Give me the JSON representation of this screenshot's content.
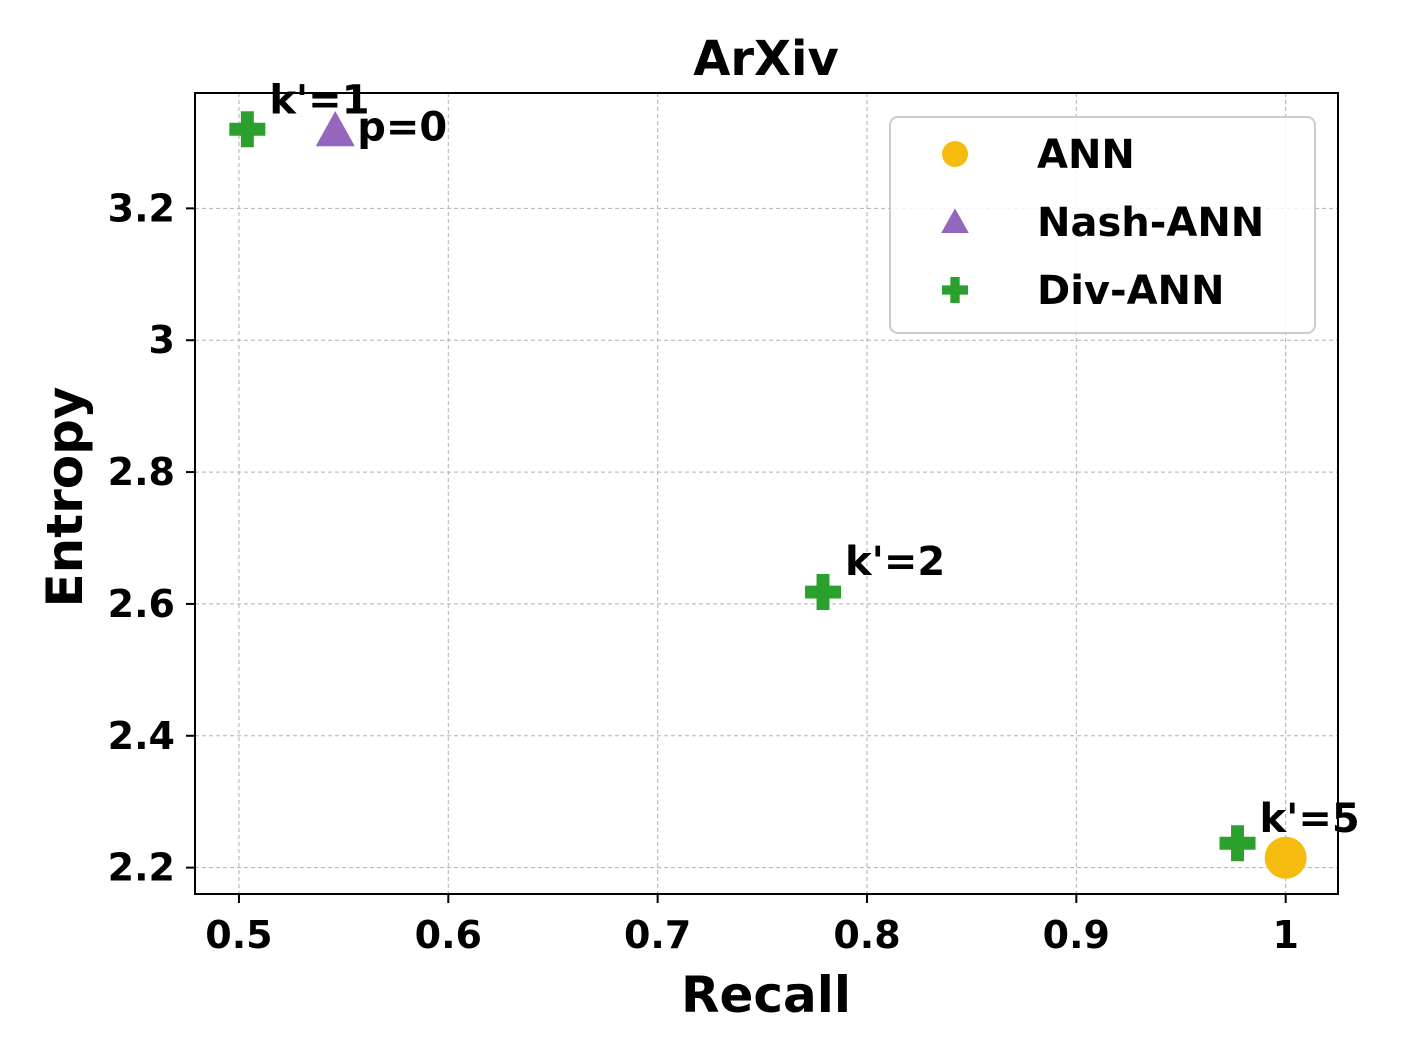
{
  "chart_data": {
    "type": "scatter",
    "title": "ArXiv",
    "xlabel": "Recall",
    "ylabel": "Entropy",
    "xlim": [
      0.479,
      1.025
    ],
    "ylim": [
      2.16,
      3.375
    ],
    "xticks": [
      0.5,
      0.6,
      0.7,
      0.8,
      0.9,
      1.0
    ],
    "xtick_labels": [
      "0.5",
      "0.6",
      "0.7",
      "0.8",
      "0.9",
      "1"
    ],
    "yticks": [
      2.2,
      2.4,
      2.6,
      2.8,
      3.0,
      3.2
    ],
    "ytick_labels": [
      "2.2",
      "2.4",
      "2.6",
      "2.8",
      "3",
      "3.2"
    ],
    "grid": true,
    "legend_position": "top-right",
    "series": [
      {
        "name": "ANN",
        "marker": "circle",
        "color": "#F5BC0F",
        "points": [
          {
            "x": 1.0,
            "y": 2.215,
            "label": ""
          }
        ]
      },
      {
        "name": "Nash-ANN",
        "marker": "triangle",
        "color": "#9467BD",
        "points": [
          {
            "x": 0.546,
            "y": 3.318,
            "label": "p=0"
          }
        ]
      },
      {
        "name": "Div-ANN",
        "marker": "plus",
        "color": "#2CA02C",
        "points": [
          {
            "x": 0.504,
            "y": 3.32,
            "label": "k'=1"
          },
          {
            "x": 0.779,
            "y": 2.618,
            "label": "k'=2"
          },
          {
            "x": 0.977,
            "y": 2.237,
            "label": "k'=5"
          }
        ]
      }
    ]
  }
}
